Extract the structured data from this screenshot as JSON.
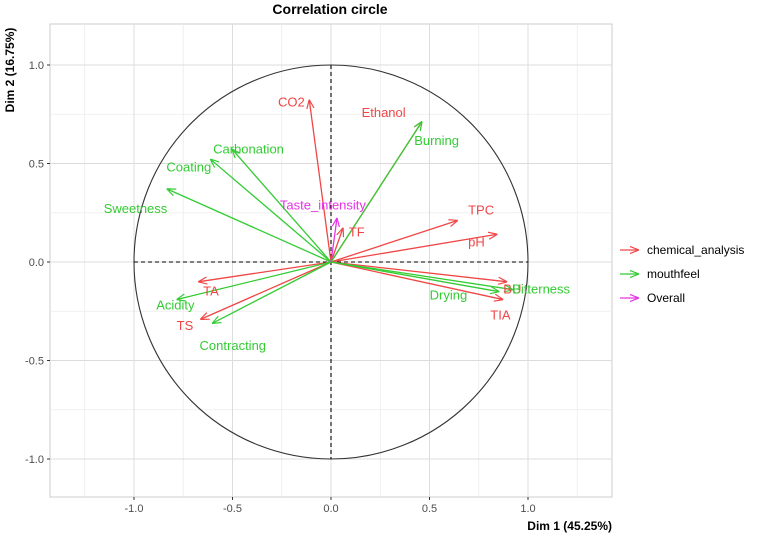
{
  "chart_data": {
    "type": "scatter",
    "subtype": "pca-correlation-circle",
    "title": "Correlation circle",
    "xlabel": "Dim 1 (45.25%)",
    "ylabel": "Dim 2 (16.75%)",
    "xlim": [
      -1.43,
      1.43
    ],
    "ylim": [
      -1.2,
      1.2
    ],
    "x_ticks": [
      -1.0,
      -0.5,
      0.0,
      0.5,
      1.0
    ],
    "x_tick_labels": [
      "-1.0",
      "-0.5",
      "0.0",
      "0.5",
      "1.0"
    ],
    "y_ticks": [
      -1.0,
      -0.5,
      0.0,
      0.5,
      1.0
    ],
    "y_tick_labels": [
      "-1.0",
      "-0.5",
      "0.0",
      "0.5",
      "1.0"
    ],
    "grid": true,
    "legend_position": "right",
    "unit_circle": true,
    "groups": [
      {
        "name": "chemical_analysis",
        "color": "#f04646"
      },
      {
        "name": "mouthfeel",
        "color": "#33cc33"
      },
      {
        "name": "Overall",
        "color": "#e633e6"
      }
    ],
    "series": [
      {
        "name": "chemical_analysis",
        "color": "#f04646",
        "points": [
          {
            "label": "CO2",
            "x": -0.11,
            "y": 0.82
          },
          {
            "label": "Ethanol",
            "x": 0.46,
            "y": 0.71
          },
          {
            "label": "TPC",
            "x": 0.64,
            "y": 0.21
          },
          {
            "label": "pH",
            "x": 0.84,
            "y": 0.14
          },
          {
            "label": "BU",
            "x": 0.89,
            "y": -0.1
          },
          {
            "label": "TIA",
            "x": 0.87,
            "y": -0.19
          },
          {
            "label": "TF",
            "x": 0.06,
            "y": 0.17
          },
          {
            "label": "TA",
            "x": -0.67,
            "y": -0.1
          },
          {
            "label": "TS",
            "x": -0.66,
            "y": -0.29
          }
        ]
      },
      {
        "name": "mouthfeel",
        "color": "#33cc33",
        "points": [
          {
            "label": "Burning",
            "x": 0.46,
            "y": 0.71
          },
          {
            "label": "Carbonation",
            "x": -0.5,
            "y": 0.57
          },
          {
            "label": "Coating",
            "x": -0.61,
            "y": 0.52
          },
          {
            "label": "Sweetness",
            "x": -0.83,
            "y": 0.37
          },
          {
            "label": "Acidity",
            "x": -0.78,
            "y": -0.19
          },
          {
            "label": "Contracting",
            "x": -0.6,
            "y": -0.31
          },
          {
            "label": "Drying",
            "x": 0.85,
            "y": -0.15
          },
          {
            "label": "Bitterness",
            "x": 0.92,
            "y": -0.14
          }
        ]
      },
      {
        "name": "Overall",
        "color": "#e633e6",
        "points": [
          {
            "label": "Taste_intensity",
            "x": 0.03,
            "y": 0.22
          }
        ]
      }
    ]
  }
}
